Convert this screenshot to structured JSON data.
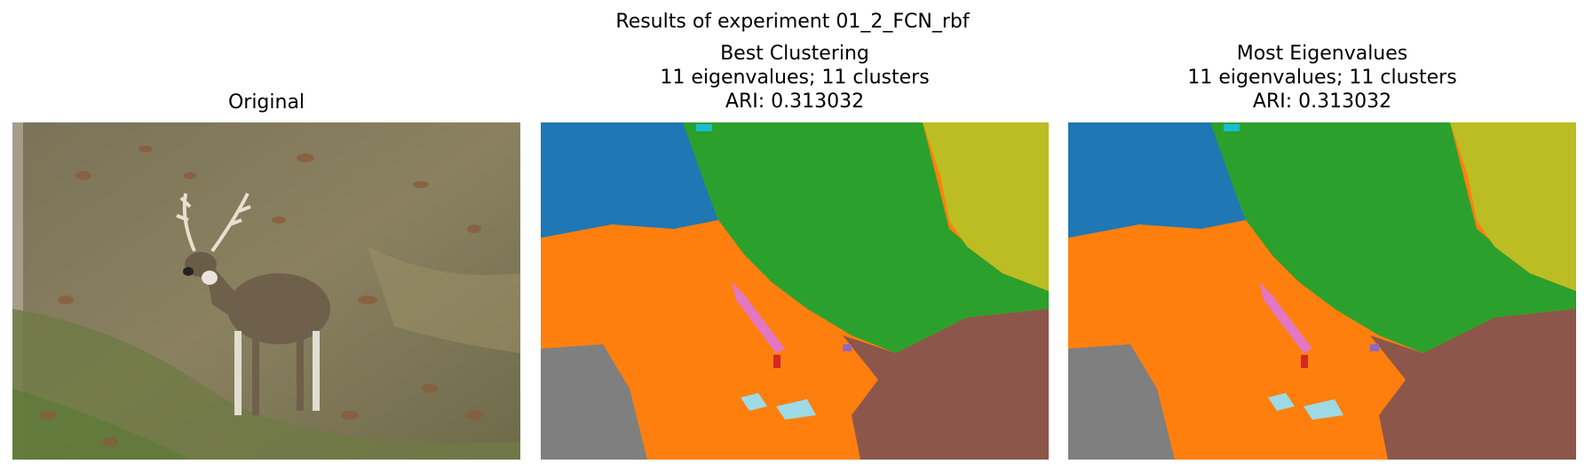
{
  "figure": {
    "suptitle": "Results of experiment 01_2_FCN_rbf"
  },
  "panels": [
    {
      "title_lines": [
        "Original"
      ],
      "content": "photo of a deer standing on a grassy, leaf-covered hillside"
    },
    {
      "title_lines": [
        "Best Clustering",
        "11 eigenvalues; 11 clusters",
        "ARI: 0.313032"
      ],
      "content": "segmentation map"
    },
    {
      "title_lines": [
        "Most Eigenvalues",
        "11 eigenvalues; 11 clusters",
        "ARI: 0.313032"
      ],
      "content": "segmentation map"
    }
  ],
  "cluster_colors": [
    "#1f77b4",
    "#ff7f0e",
    "#2ca02c",
    "#d62728",
    "#9467bd",
    "#8c564b",
    "#e377c2",
    "#7f7f7f",
    "#bcbd22",
    "#17becf",
    "#9edae5"
  ]
}
